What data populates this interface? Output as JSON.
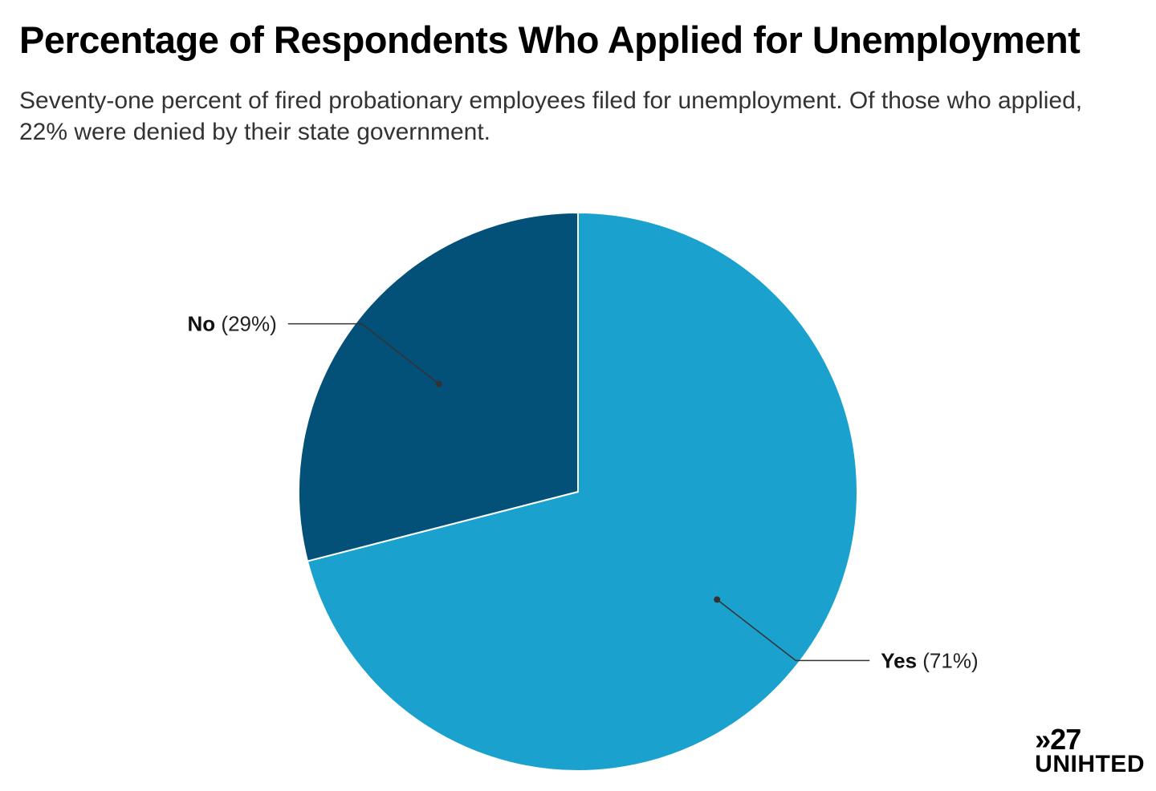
{
  "colors": {
    "yes": "#1aa1cd",
    "no": "#035078",
    "leader": "#333333",
    "separator": "#ffffff"
  },
  "chart_data": {
    "type": "pie",
    "title": "Percentage of Respondents Who Applied for Unemployment",
    "subtitle": "Seventy-one percent of fired probationary employees filed for unemployment. Of those who applied, 22% were denied by their state government.",
    "slices": [
      {
        "label": "Yes",
        "value": 71,
        "display": "(71%)",
        "color": "#1aa1cd"
      },
      {
        "label": "No",
        "value": 29,
        "display": "(29%)",
        "color": "#035078"
      }
    ],
    "start_angle": "12 o'clock",
    "direction": "clockwise"
  },
  "logo": {
    "top": "»27",
    "bottom": "UNIHTED"
  }
}
